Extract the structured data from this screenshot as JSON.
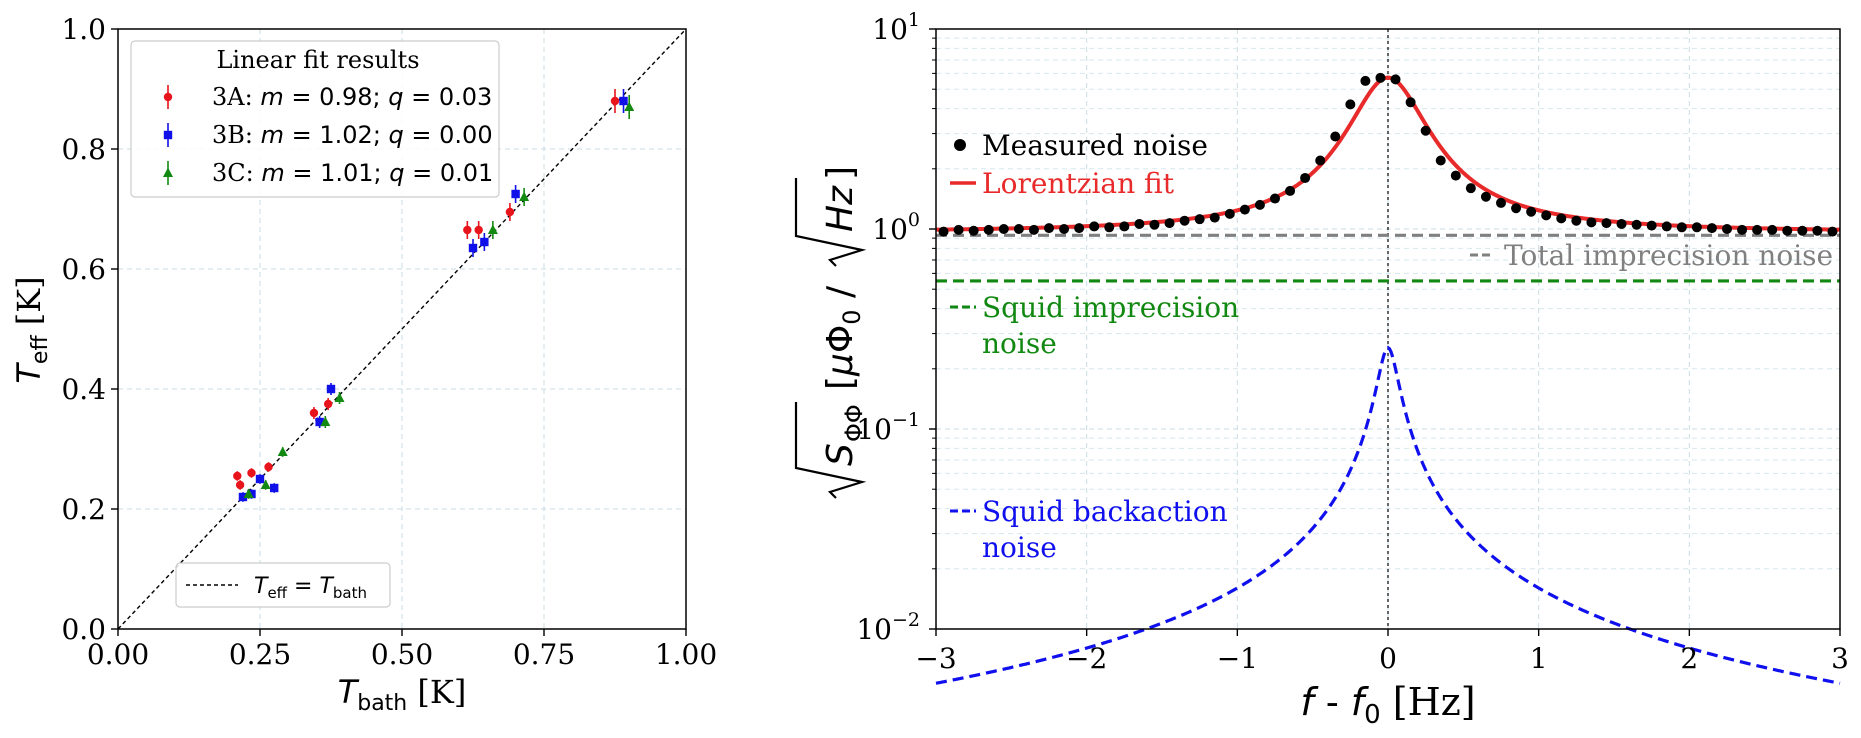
{
  "chart_data": [
    {
      "type": "scatter",
      "xlabel": "T_bath [K]",
      "ylabel": "T_eff [K]",
      "xlim": [
        0.0,
        1.0
      ],
      "ylim": [
        0.0,
        1.0
      ],
      "xticks": [
        "0.00",
        "0.25",
        "0.50",
        "0.75",
        "1.00"
      ],
      "yticks": [
        "0.0",
        "0.2",
        "0.4",
        "0.6",
        "0.8",
        "1.0"
      ],
      "grid": true,
      "legend_title": "Linear fit results",
      "legend_position": "upper-left",
      "series": [
        {
          "name": "3A: m = 0.98; q = 0.03",
          "label": "3A",
          "m": "0.98",
          "q": "0.03",
          "color": "#e8141c",
          "marker": "circle",
          "x": [
            0.21,
            0.215,
            0.235,
            0.265,
            0.345,
            0.37,
            0.615,
            0.635,
            0.69,
            0.875
          ],
          "y": [
            0.255,
            0.24,
            0.26,
            0.27,
            0.36,
            0.375,
            0.665,
            0.665,
            0.695,
            0.88
          ],
          "err": [
            0.008,
            0.008,
            0.008,
            0.008,
            0.01,
            0.01,
            0.015,
            0.015,
            0.015,
            0.02
          ]
        },
        {
          "name": "3B: m = 1.02; q = 0.00",
          "label": "3B",
          "m": "1.02",
          "q": "0.00",
          "color": "#1010e8",
          "marker": "square",
          "x": [
            0.22,
            0.235,
            0.25,
            0.275,
            0.355,
            0.375,
            0.625,
            0.645,
            0.7,
            0.89
          ],
          "y": [
            0.22,
            0.225,
            0.25,
            0.235,
            0.345,
            0.4,
            0.635,
            0.645,
            0.725,
            0.88
          ],
          "err": [
            0.008,
            0.008,
            0.008,
            0.008,
            0.01,
            0.01,
            0.015,
            0.015,
            0.015,
            0.02
          ]
        },
        {
          "name": "3C: m = 1.01; q = 0.01",
          "label": "3C",
          "m": "1.01",
          "q": "0.01",
          "color": "#128a12",
          "marker": "triangle",
          "x": [
            0.23,
            0.26,
            0.29,
            0.365,
            0.39,
            0.66,
            0.715,
            0.9
          ],
          "y": [
            0.225,
            0.24,
            0.295,
            0.345,
            0.385,
            0.665,
            0.72,
            0.87
          ],
          "err": [
            0.008,
            0.008,
            0.008,
            0.01,
            0.01,
            0.015,
            0.015,
            0.02
          ]
        }
      ],
      "reference_line": {
        "label": "T_eff = T_bath",
        "style": "black dashed",
        "legend_position": "bottom-center"
      }
    },
    {
      "type": "line",
      "xlabel": "f - f0 [Hz]",
      "ylabel": "sqrt(S_ΦΦ) [μΦ0 / sqrt(Hz)]",
      "xlim": [
        -3,
        3
      ],
      "ylim": [
        0.01,
        10
      ],
      "yscale": "log",
      "xticks": [
        "−3",
        "−2",
        "−1",
        "0",
        "1",
        "2",
        "3"
      ],
      "yticks_exponents": [
        "−2",
        "−1",
        "0",
        "1"
      ],
      "grid": true,
      "vertical_line": {
        "x": 0,
        "style": "black dotted"
      },
      "series": [
        {
          "name": "Measured noise",
          "style": "black dots",
          "x": [
            -2.95,
            -2.85,
            -2.75,
            -2.65,
            -2.55,
            -2.45,
            -2.35,
            -2.25,
            -2.15,
            -2.05,
            -1.95,
            -1.85,
            -1.75,
            -1.65,
            -1.55,
            -1.45,
            -1.35,
            -1.25,
            -1.15,
            -1.05,
            -0.95,
            -0.85,
            -0.75,
            -0.65,
            -0.55,
            -0.45,
            -0.35,
            -0.25,
            -0.15,
            -0.05,
            0.05,
            0.15,
            0.25,
            0.35,
            0.45,
            0.55,
            0.65,
            0.75,
            0.85,
            0.95,
            1.05,
            1.15,
            1.25,
            1.35,
            1.45,
            1.55,
            1.65,
            1.75,
            1.85,
            1.95,
            2.05,
            2.15,
            2.25,
            2.35,
            2.45,
            2.55,
            2.65,
            2.75,
            2.85,
            2.95
          ],
          "y": [
            0.97,
            0.99,
            0.98,
            0.99,
            1.0,
            1.0,
            0.99,
            1.01,
            1.0,
            1.01,
            1.03,
            1.02,
            1.03,
            1.06,
            1.05,
            1.07,
            1.1,
            1.12,
            1.14,
            1.19,
            1.25,
            1.32,
            1.42,
            1.55,
            1.8,
            2.2,
            2.9,
            4.2,
            5.5,
            5.7,
            5.6,
            4.3,
            3.1,
            2.2,
            1.85,
            1.6,
            1.45,
            1.35,
            1.27,
            1.22,
            1.17,
            1.13,
            1.1,
            1.08,
            1.07,
            1.06,
            1.05,
            1.04,
            1.03,
            1.02,
            1.02,
            1.01,
            1.0,
            0.99,
            0.99,
            0.99,
            0.98,
            0.98,
            0.98,
            0.97
          ]
        },
        {
          "name": "Lorentzian fit",
          "color": "#e82a2a",
          "model": "0.96 + 4.75 / (1 + (x/0.25)^2)"
        },
        {
          "name": "Total imprecision noise",
          "color": "#808080",
          "style": "dashed",
          "value": 0.93
        },
        {
          "name": "Squid imprecision noise",
          "color": "#118811",
          "style": "dashed",
          "value": 0.55
        },
        {
          "name": "Squid backaction noise",
          "color": "#1010ee",
          "style": "dashed",
          "model": "0.255 / sqrt(1 + (x/0.063)^2)"
        }
      ]
    }
  ]
}
